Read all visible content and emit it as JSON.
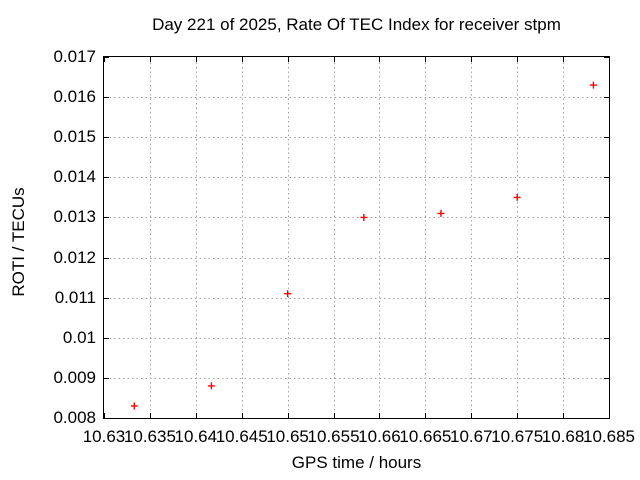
{
  "chart_data": {
    "type": "scatter",
    "title": "Day 221 of 2025, Rate Of TEC Index for receiver stpm",
    "xlabel": "GPS time / hours",
    "ylabel": "ROTI / TECUs",
    "xlim": [
      10.63,
      10.685
    ],
    "ylim": [
      0.008,
      0.017
    ],
    "x_ticks": [
      10.63,
      10.635,
      10.64,
      10.645,
      10.65,
      10.655,
      10.66,
      10.665,
      10.67,
      10.675,
      10.68,
      10.685
    ],
    "x_tick_labels": [
      "10.63",
      "10.635",
      "10.64",
      "10.645",
      "10.65",
      "10.655",
      "10.66",
      "10.665",
      "10.67",
      "10.675",
      "10.68",
      "10.685"
    ],
    "y_ticks": [
      0.008,
      0.009,
      0.01,
      0.011,
      0.012,
      0.013,
      0.014,
      0.015,
      0.016,
      0.017
    ],
    "y_tick_labels": [
      "0.008",
      "0.009",
      "0.01",
      "0.011",
      "0.012",
      "0.013",
      "0.014",
      "0.015",
      "0.016",
      "0.017"
    ],
    "grid": true,
    "legend": "none",
    "marker": {
      "shape": "plus",
      "color": "#ff0000",
      "size": 7
    },
    "grid_color": "#a0a0a0",
    "axis_color": "#000000",
    "series": [
      {
        "name": "ROTI",
        "x": [
          10.6333,
          10.6417,
          10.65,
          10.6583,
          10.6667,
          10.675,
          10.6833
        ],
        "y": [
          0.0083,
          0.0088,
          0.0111,
          0.013,
          0.0131,
          0.0135,
          0.0163
        ]
      }
    ]
  }
}
